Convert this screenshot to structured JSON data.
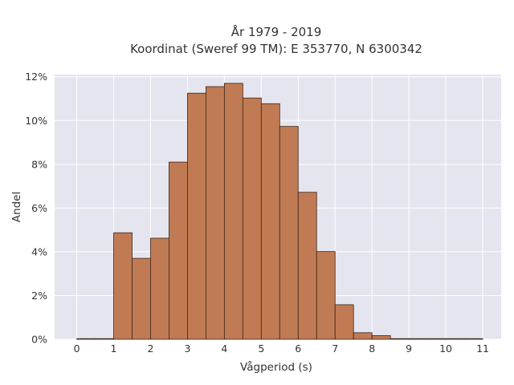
{
  "chart_data": {
    "type": "bar",
    "title": "År 1979 - 2019",
    "subtitle": "Koordinat (Sweref 99 TM): E 353770, N 6300342",
    "xlabel": "Vågperiod (s)",
    "ylabel": "Andel",
    "bin_width": 0.5,
    "bins": [
      {
        "start": 0.0,
        "value": 0.0002
      },
      {
        "start": 0.5,
        "value": 0.0
      },
      {
        "start": 1.0,
        "value": 0.0487
      },
      {
        "start": 1.5,
        "value": 0.037
      },
      {
        "start": 2.0,
        "value": 0.0462
      },
      {
        "start": 2.5,
        "value": 0.081
      },
      {
        "start": 3.0,
        "value": 0.1125
      },
      {
        "start": 3.5,
        "value": 0.1155
      },
      {
        "start": 4.0,
        "value": 0.117
      },
      {
        "start": 4.5,
        "value": 0.1103
      },
      {
        "start": 5.0,
        "value": 0.1077
      },
      {
        "start": 5.5,
        "value": 0.0973
      },
      {
        "start": 6.0,
        "value": 0.0672
      },
      {
        "start": 6.5,
        "value": 0.0401
      },
      {
        "start": 7.0,
        "value": 0.0158
      },
      {
        "start": 7.5,
        "value": 0.003
      },
      {
        "start": 8.0,
        "value": 0.0017
      },
      {
        "start": 8.5,
        "value": 0.0002
      },
      {
        "start": 9.0,
        "value": 0.0002
      },
      {
        "start": 9.5,
        "value": 0.0
      },
      {
        "start": 10.0,
        "value": 0.0
      },
      {
        "start": 10.5,
        "value": 0.0
      }
    ],
    "xlim": [
      -0.6,
      11.5
    ],
    "ylim": [
      0,
      0.121
    ],
    "x_ticks": [
      {
        "value": 0,
        "label": "0"
      },
      {
        "value": 1,
        "label": "1"
      },
      {
        "value": 2,
        "label": "2"
      },
      {
        "value": 3,
        "label": "3"
      },
      {
        "value": 4,
        "label": "4"
      },
      {
        "value": 5,
        "label": "5"
      },
      {
        "value": 6,
        "label": "6"
      },
      {
        "value": 7,
        "label": "7"
      },
      {
        "value": 8,
        "label": "8"
      },
      {
        "value": 9,
        "label": "9"
      },
      {
        "value": 10,
        "label": "10"
      },
      {
        "value": 11,
        "label": "11"
      }
    ],
    "y_ticks": [
      {
        "value": 0,
        "label": "0%"
      },
      {
        "value": 0.02,
        "label": "2%"
      },
      {
        "value": 0.04,
        "label": "4%"
      },
      {
        "value": 0.06,
        "label": "6%"
      },
      {
        "value": 0.08,
        "label": "8%"
      },
      {
        "value": 0.1,
        "label": "10%"
      },
      {
        "value": 0.12,
        "label": "12%"
      }
    ],
    "grid": true,
    "legend": "none",
    "colors": {
      "bar_fill": "#c07b54",
      "bar_edge": "#3a2418",
      "plot_background": "#e5e5ef",
      "grid": "#ffffff",
      "text": "#333333"
    }
  }
}
